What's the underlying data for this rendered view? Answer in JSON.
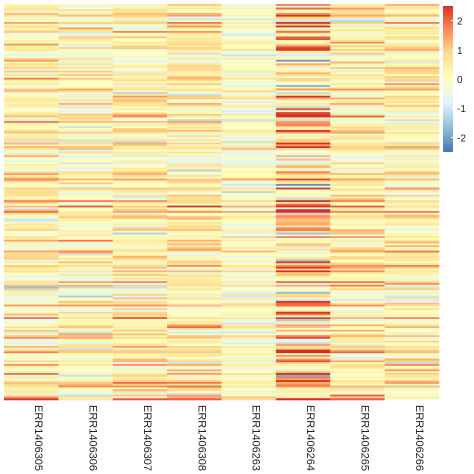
{
  "chart_data": {
    "type": "heatmap",
    "title": "",
    "xlabel": "",
    "ylabel": "",
    "columns": [
      "ERR1406305",
      "ERR1406306",
      "ERR1406307",
      "ERR1406308",
      "ERR1406263",
      "ERR1406264",
      "ERR1406265",
      "ERR1406266"
    ],
    "row_count": 220,
    "column_mean_value": [
      0.35,
      0.25,
      0.45,
      0.5,
      0.0,
      0.9,
      0.5,
      0.4
    ],
    "column_spread": [
      0.7,
      0.7,
      0.7,
      0.7,
      0.45,
      1.2,
      0.7,
      0.75
    ],
    "value_range": [
      -2.5,
      2.5
    ],
    "legend": {
      "placement": "right",
      "ticks": [
        "2",
        "1",
        "0",
        "-1",
        "-2"
      ],
      "tick_values": [
        2,
        1,
        0,
        -1,
        -2
      ],
      "colors": [
        "#d73027",
        "#fc8d59",
        "#fee090",
        "#ffffbf",
        "#e0f3f8",
        "#91bfdb",
        "#4575b4"
      ]
    }
  }
}
